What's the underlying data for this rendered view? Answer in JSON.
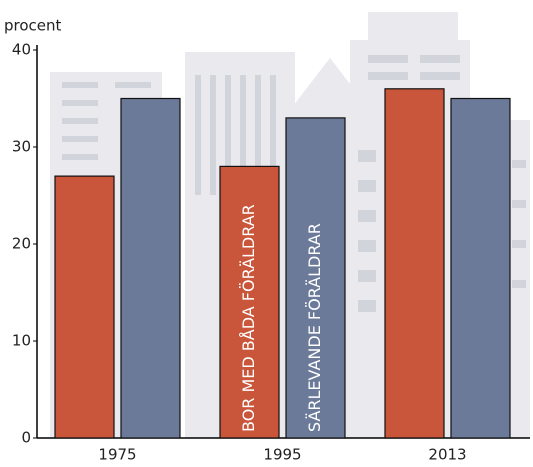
{
  "chart_data": {
    "type": "bar",
    "y_label": "procent",
    "categories": [
      "1975",
      "1995",
      "2013"
    ],
    "series": [
      {
        "name": "BOR MED BÅDA FÖRÄLDRAR",
        "color": "#c9553a",
        "values": [
          27,
          28,
          36
        ]
      },
      {
        "name": "SÄRLEVANDE FÖRÄLDRAR",
        "color": "#6b7a99",
        "values": [
          35,
          33,
          35
        ]
      }
    ],
    "ylim": [
      0,
      40
    ],
    "yticks": [
      0,
      10,
      20,
      30,
      40
    ]
  }
}
